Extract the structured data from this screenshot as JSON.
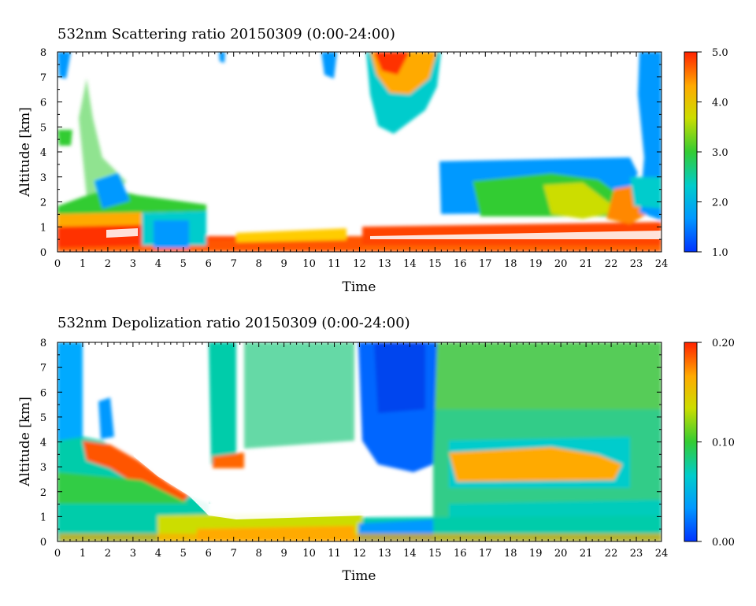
{
  "chart_data": [
    {
      "type": "heatmap",
      "title": "532nm Scattering ratio  20150309 (0:00-24:00)",
      "xlabel": "Time",
      "ylabel": "Altitude [km]",
      "x_ticks": [
        "0",
        "1",
        "2",
        "3",
        "4",
        "5",
        "6",
        "7",
        "8",
        "9",
        "10",
        "11",
        "12",
        "13",
        "14",
        "15",
        "16",
        "17",
        "18",
        "19",
        "20",
        "21",
        "22",
        "23",
        "24"
      ],
      "y_ticks": [
        "0",
        "1",
        "2",
        "3",
        "4",
        "5",
        "6",
        "7",
        "8"
      ],
      "xlim": [
        0,
        24
      ],
      "ylim": [
        0,
        8
      ],
      "colorbar": {
        "range": [
          1.0,
          5.0
        ],
        "tick_labels": [
          "1.0",
          "2.0",
          "3.0",
          "4.0",
          "5.0"
        ],
        "tick_values": [
          1.0,
          2.0,
          3.0,
          4.0,
          5.0
        ]
      }
    },
    {
      "type": "heatmap",
      "title": "532nm Depolization ratio  20150309 (0:00-24:00)",
      "xlabel": "Time",
      "ylabel": "Altitude [km]",
      "x_ticks": [
        "0",
        "1",
        "2",
        "3",
        "4",
        "5",
        "6",
        "7",
        "8",
        "9",
        "10",
        "11",
        "12",
        "13",
        "14",
        "15",
        "16",
        "17",
        "18",
        "19",
        "20",
        "21",
        "22",
        "23",
        "24"
      ],
      "y_ticks": [
        "0",
        "1",
        "2",
        "3",
        "4",
        "5",
        "6",
        "7",
        "8"
      ],
      "xlim": [
        0,
        24
      ],
      "ylim": [
        0,
        8
      ],
      "colorbar": {
        "range": [
          0.0,
          0.2
        ],
        "tick_labels": [
          "0.00",
          "0.10",
          "0.20"
        ],
        "tick_values": [
          0.0,
          0.1,
          0.2
        ]
      }
    }
  ],
  "colors": {
    "scale": [
      "#0033ff",
      "#0099ff",
      "#00cccc",
      "#33cc33",
      "#ccdd00",
      "#ffaa00",
      "#ff3300"
    ]
  }
}
